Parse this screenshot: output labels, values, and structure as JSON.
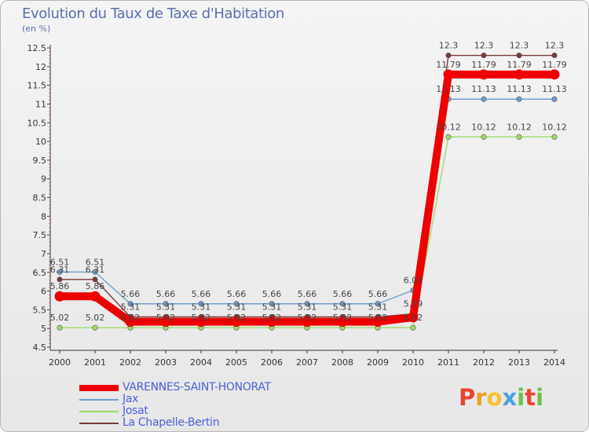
{
  "chart_data": {
    "type": "line",
    "title": "Evolution du Taux de Taxe d'Habitation",
    "ylabel": "(en %)",
    "xlabel": "",
    "x": [
      "2000",
      "2001",
      "2002",
      "2003",
      "2004",
      "2005",
      "2006",
      "2007",
      "2008",
      "2009",
      "2010",
      "2011",
      "2012",
      "2013",
      "2014"
    ],
    "ylim": [
      4.5,
      12.5
    ],
    "yticks": [
      "4.5",
      "5",
      "5.5",
      "6",
      "6.5",
      "7",
      "7.5",
      "8",
      "8.5",
      "9",
      "9.5",
      "10",
      "10.5",
      "11",
      "11.5",
      "12",
      "12.5"
    ],
    "grid": false,
    "legend_position": "bottom-left",
    "series": [
      {
        "name": "VARENNES-SAINT-HONORAT",
        "color": "#ee0000",
        "values": [
          5.86,
          5.86,
          5.18,
          5.18,
          5.18,
          5.18,
          5.18,
          5.18,
          5.18,
          5.18,
          5.3,
          11.79,
          11.79,
          11.79,
          11.79
        ],
        "labels": [
          "5.86",
          "5.86",
          "",
          "",
          "",
          "",
          "",
          "",
          "",
          "",
          "",
          "11.79",
          "11.79",
          "11.79",
          "11.79"
        ]
      },
      {
        "name": "Jax",
        "color": "#6d9fce",
        "values": [
          6.51,
          6.51,
          5.66,
          5.66,
          5.66,
          5.66,
          5.66,
          5.66,
          5.66,
          5.66,
          6.02,
          11.13,
          11.13,
          11.13,
          11.13
        ],
        "labels": [
          "6.51",
          "6.51",
          "5.66",
          "5.66",
          "5.66",
          "5.66",
          "5.66",
          "5.66",
          "5.66",
          "5.66",
          "6.02",
          "11.13",
          "11.13",
          "11.13",
          "11.13"
        ]
      },
      {
        "name": "Josat",
        "color": "#99dd66",
        "values": [
          5.02,
          5.02,
          5.02,
          5.02,
          5.02,
          5.02,
          5.02,
          5.02,
          5.02,
          5.02,
          5.02,
          10.12,
          10.12,
          10.12,
          10.12
        ],
        "labels": [
          "5.02",
          "5.02",
          "5.02",
          "5.02",
          "5.02",
          "5.02",
          "5.02",
          "5.02",
          "5.02",
          "5.02",
          "5.02",
          "10.12",
          "10.12",
          "10.12",
          "10.12"
        ]
      },
      {
        "name": "La Chapelle-Bertin",
        "color": "#7a3838",
        "values": [
          6.31,
          6.31,
          5.31,
          5.31,
          5.31,
          5.31,
          5.31,
          5.31,
          5.31,
          5.31,
          5.39,
          12.3,
          12.3,
          12.3,
          12.3
        ],
        "labels": [
          "6.31",
          "6.31",
          "5.31",
          "5.31",
          "5.31",
          "5.31",
          "5.31",
          "5.31",
          "5.31",
          "5.31",
          "5.39",
          "12.3",
          "12.3",
          "12.3",
          "12.3"
        ]
      }
    ]
  },
  "logo": {
    "text": "Proxiti",
    "letters": [
      "P",
      "r",
      "o",
      "x",
      "i",
      "t",
      "i"
    ]
  }
}
